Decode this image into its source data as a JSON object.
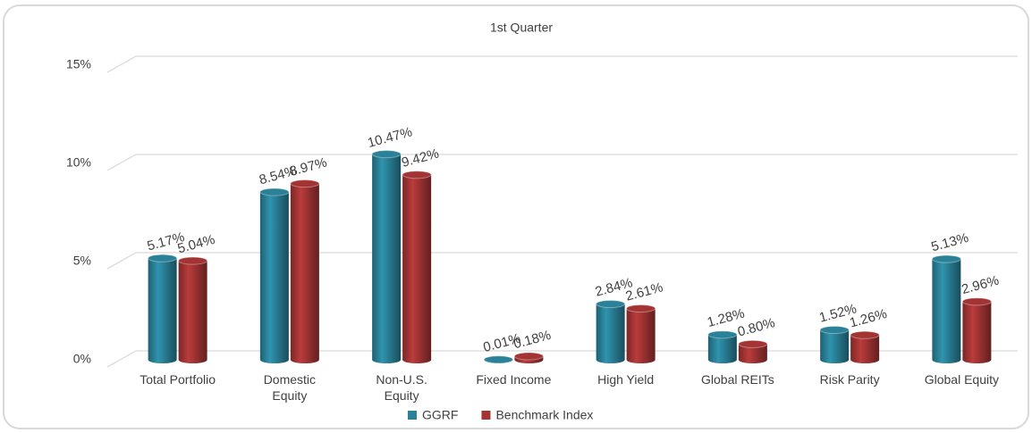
{
  "chart_data": {
    "type": "bar",
    "title": "1st Quarter",
    "categories": [
      "Total Portfolio",
      "Domestic Equity",
      "Non-U.S. Equity",
      "Fixed Income",
      "High Yield",
      "Global REITs",
      "Risk Parity",
      "Global Equity"
    ],
    "series": [
      {
        "name": "GGRF",
        "color": "#2a8198",
        "values": [
          5.17,
          8.54,
          10.47,
          0.01,
          2.84,
          1.28,
          1.52,
          5.13
        ],
        "value_labels": [
          "5.17%",
          "8.54%",
          "10.47%",
          "0.01%",
          "2.84%",
          "1.28%",
          "1.52%",
          "5.13%"
        ]
      },
      {
        "name": "Benchmark Index",
        "color": "#a33434",
        "values": [
          5.04,
          8.97,
          9.42,
          0.18,
          2.61,
          0.8,
          1.26,
          2.96
        ],
        "value_labels": [
          "5.04%",
          "8.97%",
          "9.42%",
          "0.18%",
          "2.61%",
          "0.80%",
          "1.26%",
          "2.96%"
        ]
      }
    ],
    "ylim": [
      0,
      15
    ],
    "yticks": [
      {
        "value": 0,
        "label": "0%"
      },
      {
        "value": 5,
        "label": "5%"
      },
      {
        "value": 10,
        "label": "10%"
      },
      {
        "value": 15,
        "label": "15%"
      }
    ],
    "grid": true,
    "legend": "bottom"
  }
}
